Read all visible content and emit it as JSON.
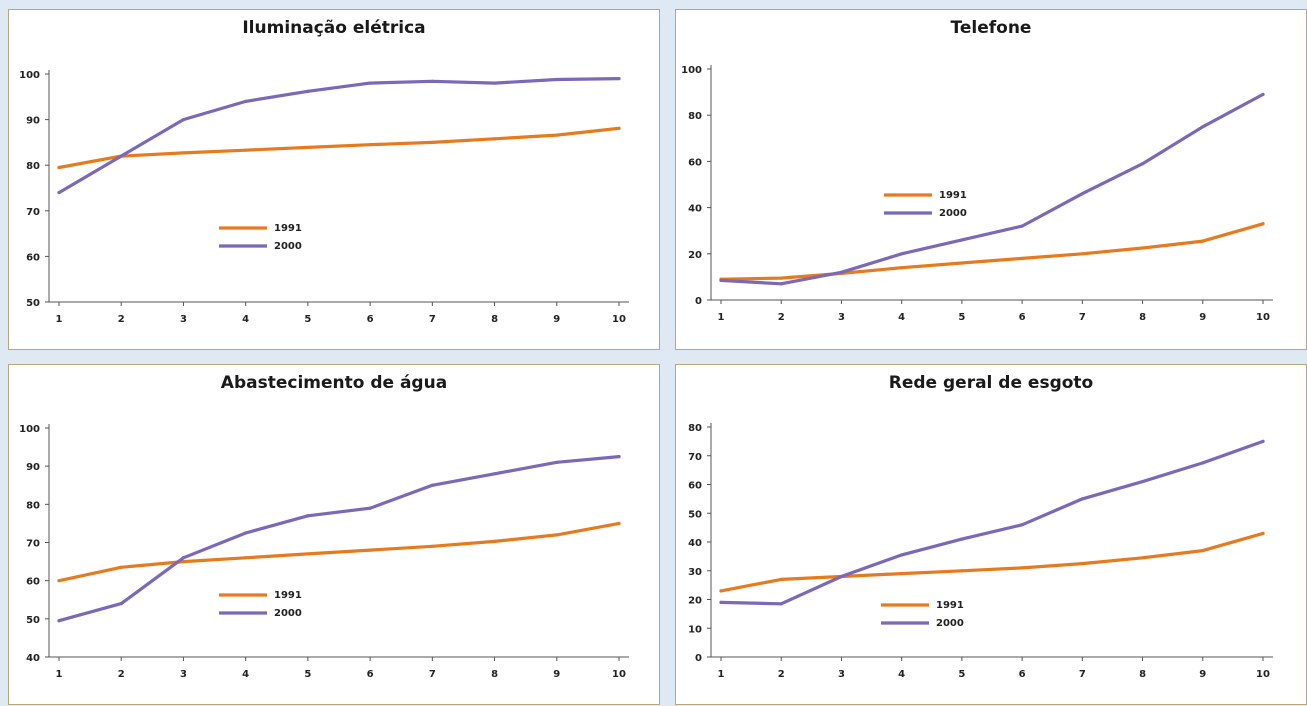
{
  "colors": {
    "series_1991": "#e87a1e",
    "series_2000": "#7b68b8",
    "panel_border": "#b9a77a",
    "background": "#dfe9f3"
  },
  "chart_data": [
    {
      "type": "line",
      "title": "Iluminação elétrica",
      "x": [
        "1",
        "2",
        "3",
        "4",
        "5",
        "6",
        "7",
        "8",
        "9",
        "10"
      ],
      "ylim": [
        50,
        100
      ],
      "yticks": [
        50,
        60,
        70,
        80,
        90,
        100
      ],
      "series": [
        {
          "name": "1991",
          "values": [
            79.5,
            82,
            82.7,
            83.3,
            83.9,
            84.5,
            85,
            85.8,
            86.6,
            88.1
          ]
        },
        {
          "name": "2000",
          "values": [
            74,
            82,
            90,
            94,
            96.2,
            98,
            98.4,
            98,
            98.8,
            99
          ]
        }
      ],
      "legend": "center-left",
      "grid": false
    },
    {
      "type": "line",
      "title": "Telefone",
      "x": [
        "1",
        "2",
        "3",
        "4",
        "5",
        "6",
        "7",
        "8",
        "9",
        "10"
      ],
      "ylim": [
        0,
        100
      ],
      "yticks": [
        0,
        20,
        40,
        60,
        80,
        100
      ],
      "series": [
        {
          "name": "1991",
          "values": [
            9,
            9.5,
            11.5,
            14,
            16,
            18,
            20,
            22.5,
            25.5,
            33
          ]
        },
        {
          "name": "2000",
          "values": [
            8.5,
            7,
            12,
            20,
            26,
            32,
            46,
            59,
            75,
            89
          ]
        }
      ],
      "legend": "center",
      "grid": false
    },
    {
      "type": "line",
      "title": "Abastecimento de água",
      "x": [
        "1",
        "2",
        "3",
        "4",
        "5",
        "6",
        "7",
        "8",
        "9",
        "10"
      ],
      "ylim": [
        40,
        100
      ],
      "yticks": [
        40,
        50,
        60,
        70,
        80,
        90,
        100
      ],
      "series": [
        {
          "name": "1991",
          "values": [
            60,
            63.5,
            65,
            66,
            67,
            68,
            69,
            70.3,
            72,
            75
          ]
        },
        {
          "name": "2000",
          "values": [
            49.5,
            54,
            66,
            72.5,
            77,
            79,
            85,
            88,
            91,
            92.5
          ]
        }
      ],
      "legend": "center",
      "grid": false
    },
    {
      "type": "line",
      "title": "Rede geral de esgoto",
      "x": [
        "1",
        "2",
        "3",
        "4",
        "5",
        "6",
        "7",
        "8",
        "9",
        "10"
      ],
      "ylim": [
        0,
        80
      ],
      "yticks": [
        0,
        10,
        20,
        30,
        40,
        50,
        60,
        70,
        80
      ],
      "series": [
        {
          "name": "1991",
          "values": [
            23,
            27,
            28,
            29,
            30,
            31,
            32.5,
            34.5,
            37,
            43
          ]
        },
        {
          "name": "2000",
          "values": [
            19,
            18.5,
            28,
            35.5,
            41,
            46,
            55,
            61,
            67.5,
            75
          ]
        }
      ],
      "legend": "bottom-center",
      "grid": false
    }
  ]
}
